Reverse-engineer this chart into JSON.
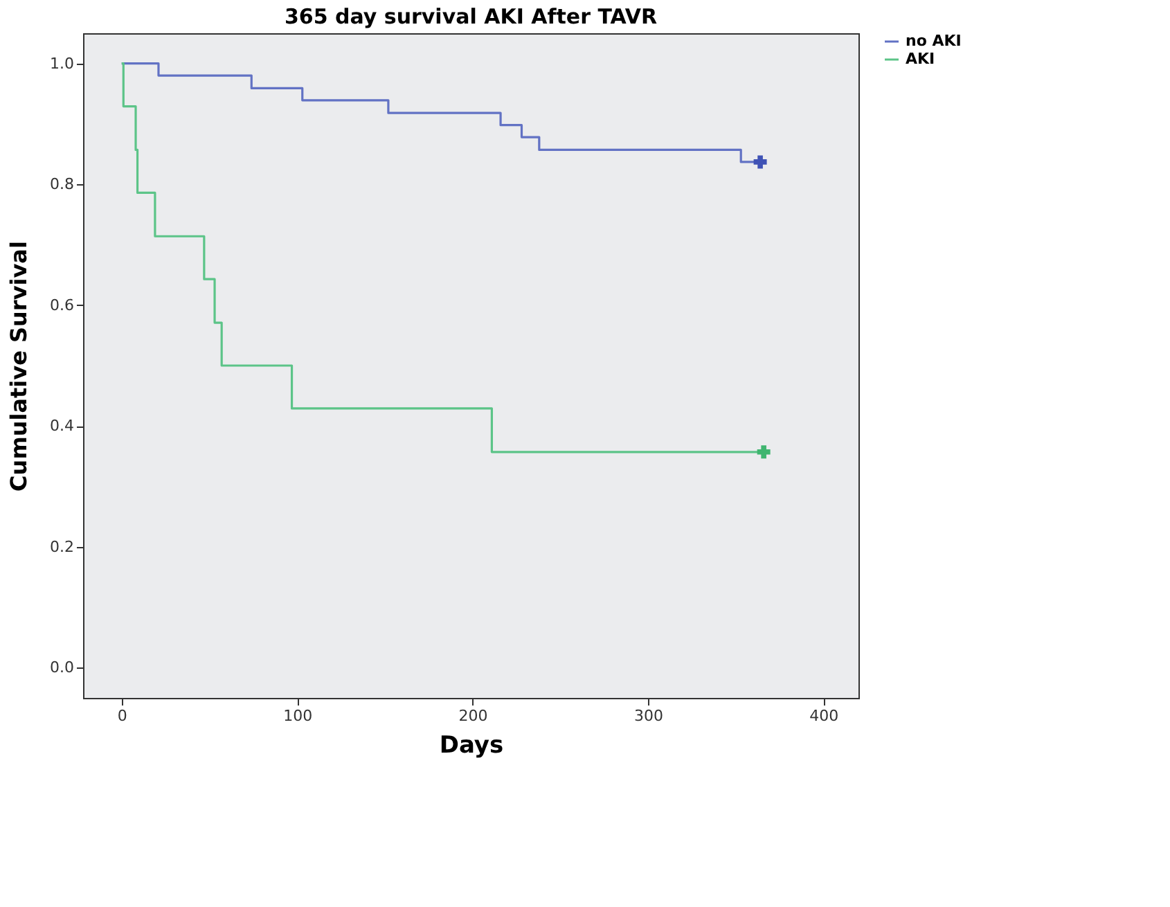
{
  "chart_data": {
    "type": "step",
    "title": "365 day survival AKI After TAVR",
    "xlabel": "Days",
    "ylabel": "Cumulative Survival",
    "xlim": [
      -22,
      420
    ],
    "ylim": [
      -0.05,
      1.05
    ],
    "xticks": [
      0,
      100,
      200,
      300,
      400
    ],
    "yticks": [
      {
        "value": 0,
        "label": "0.0"
      },
      {
        "value": 0.2,
        "label": "0.2"
      },
      {
        "value": 0.4,
        "label": "0.4"
      },
      {
        "value": 0.6,
        "label": "0.6"
      },
      {
        "value": 0.8,
        "label": "0.8"
      },
      {
        "value": 1,
        "label": "1.0"
      }
    ],
    "grid": false,
    "legend": "right",
    "marker": "none",
    "line_style": "solid",
    "series": [
      {
        "name": "no AKI",
        "color": "#6272c4",
        "x": [
          0,
          21,
          74,
          103,
          152,
          216,
          228,
          238,
          353,
          366
        ],
        "values": [
          1.0,
          0.98,
          0.959,
          0.939,
          0.918,
          0.898,
          0.878,
          0.857,
          0.837,
          0.837
        ]
      },
      {
        "name": "AKI",
        "color": "#5cc488",
        "x": [
          0,
          1,
          8,
          9,
          19,
          47,
          53,
          57,
          97,
          211,
          366
        ],
        "values": [
          1.0,
          0.929,
          0.857,
          0.786,
          0.714,
          0.643,
          0.571,
          0.5,
          0.429,
          0.357,
          0.357
        ]
      },
      {
        "type": "scatter",
        "marker": "cross",
        "color": "#3f52b5",
        "x": [
          364
        ],
        "values": [
          0.837
        ]
      },
      {
        "type": "scatter",
        "marker": "cross",
        "color": "#3fb56f",
        "x": [
          366
        ],
        "values": [
          0.357
        ]
      }
    ]
  }
}
